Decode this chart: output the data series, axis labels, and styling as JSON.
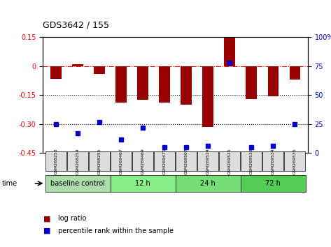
{
  "title": "GDS3642 / 155",
  "samples": [
    "GSM268253",
    "GSM268254",
    "GSM268255",
    "GSM269467",
    "GSM269469",
    "GSM269471",
    "GSM269507",
    "GSM269524",
    "GSM269525",
    "GSM269533",
    "GSM269534",
    "GSM269535"
  ],
  "log_ratio": [
    -0.065,
    0.01,
    -0.04,
    -0.19,
    -0.175,
    -0.19,
    -0.2,
    -0.315,
    0.155,
    -0.17,
    -0.155,
    -0.07
  ],
  "percentile_rank": [
    25,
    17,
    27,
    12,
    22,
    5,
    5,
    6,
    78,
    5,
    6,
    25
  ],
  "groups": [
    {
      "label": "baseline control",
      "start": 0,
      "end": 3,
      "color": "#aaddaa"
    },
    {
      "label": "12 h",
      "start": 3,
      "end": 6,
      "color": "#88ee88"
    },
    {
      "label": "24 h",
      "start": 6,
      "end": 9,
      "color": "#77dd77"
    },
    {
      "label": "72 h",
      "start": 9,
      "end": 12,
      "color": "#55cc55"
    }
  ],
  "bar_color": "#990000",
  "dot_color": "#0000cc",
  "ylim_left": [
    -0.45,
    0.15
  ],
  "ylim_right": [
    0,
    100
  ],
  "yticks_left": [
    0.15,
    0,
    -0.15,
    -0.3,
    -0.45
  ],
  "yticks_right": [
    100,
    75,
    50,
    25,
    0
  ],
  "ytick_labels_left": [
    "0.15",
    "0",
    "-0.15",
    "-0.30",
    "-0.45"
  ],
  "ytick_labels_right": [
    "100%",
    "75",
    "50",
    "25",
    "0"
  ],
  "hlines": [
    0,
    -0.15,
    -0.3
  ],
  "hline_styles": [
    "dashdot",
    "dotted",
    "dotted"
  ],
  "hline_colors": [
    "red",
    "black",
    "black"
  ],
  "background_color": "#ffffff",
  "sample_box_color": "#dddddd"
}
